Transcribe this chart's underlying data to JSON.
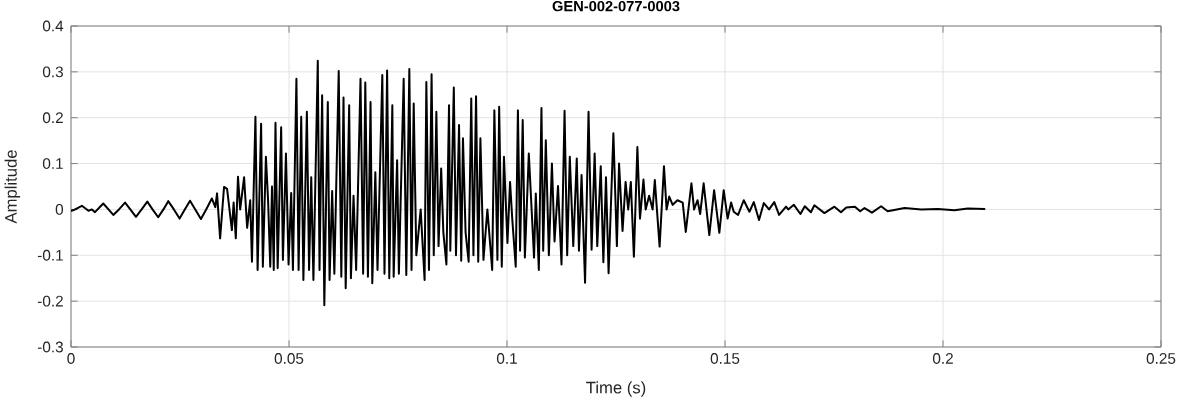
{
  "chart_data": {
    "type": "line",
    "title": "GEN-002-077-0003",
    "xlabel": "Time (s)",
    "ylabel": "Amplitude",
    "x": [
      0,
      0.0005,
      0.0025,
      0.004,
      0.0048,
      0.0055,
      0.0074,
      0.0086,
      0.0097,
      0.011,
      0.0124,
      0.0136,
      0.0149,
      0.0162,
      0.0175,
      0.0187,
      0.02,
      0.0212,
      0.0223,
      0.0236,
      0.0249,
      0.0261,
      0.0273,
      0.0285,
      0.0298,
      0.031,
      0.0323,
      0.0331,
      0.0335,
      0.0342,
      0.0351,
      0.0358,
      0.0369,
      0.0373,
      0.0378,
      0.0383,
      0.0388,
      0.0397,
      0.0404,
      0.0411,
      0.0415,
      0.0423,
      0.0428,
      0.0436,
      0.044,
      0.0447,
      0.0452,
      0.0457,
      0.0461,
      0.0465,
      0.0469,
      0.0474,
      0.0482,
      0.0486,
      0.0493,
      0.0499,
      0.0505,
      0.0509,
      0.0517,
      0.0522,
      0.0528,
      0.0533,
      0.0541,
      0.0546,
      0.0551,
      0.0556,
      0.0566,
      0.057,
      0.0576,
      0.0581,
      0.0589,
      0.0593,
      0.0599,
      0.0604,
      0.0614,
      0.062,
      0.0625,
      0.063,
      0.0638,
      0.0642,
      0.0648,
      0.0654,
      0.0664,
      0.067,
      0.0675,
      0.0681,
      0.0687,
      0.0691,
      0.0698,
      0.0703,
      0.0714,
      0.0719,
      0.0725,
      0.073,
      0.0737,
      0.074,
      0.0748,
      0.0752,
      0.0763,
      0.0769,
      0.0776,
      0.0781,
      0.0786,
      0.0792,
      0.0802,
      0.0811,
      0.0815,
      0.0821,
      0.0827,
      0.0832,
      0.0838,
      0.0843,
      0.0849,
      0.0854,
      0.0861,
      0.0867,
      0.087,
      0.0878,
      0.0883,
      0.089,
      0.0895,
      0.0899,
      0.0905,
      0.0912,
      0.0918,
      0.0923,
      0.0929,
      0.0934,
      0.0939,
      0.0946,
      0.0955,
      0.0966,
      0.0971,
      0.0978,
      0.0982,
      0.0988,
      0.0993,
      0.1001,
      0.1007,
      0.1012,
      0.102,
      0.1025,
      0.103,
      0.1036,
      0.1041,
      0.105,
      0.1062,
      0.1066,
      0.1073,
      0.1079,
      0.1083,
      0.1089,
      0.1096,
      0.1103,
      0.1109,
      0.1117,
      0.1125,
      0.1132,
      0.1138,
      0.1144,
      0.1152,
      0.116,
      0.1165,
      0.1171,
      0.1179,
      0.1187,
      0.1194,
      0.1201,
      0.1207,
      0.1215,
      0.1221,
      0.1227,
      0.1233,
      0.1244,
      0.1252,
      0.1257,
      0.1265,
      0.1272,
      0.1278,
      0.1284,
      0.1291,
      0.1299,
      0.1305,
      0.1313,
      0.1318,
      0.1326,
      0.1334,
      0.1339,
      0.135,
      0.136,
      0.1366,
      0.1372,
      0.138,
      0.1391,
      0.1403,
      0.141,
      0.1423,
      0.1429,
      0.1437,
      0.1443,
      0.1451,
      0.1464,
      0.1475,
      0.1487,
      0.1497,
      0.1506,
      0.1514,
      0.152,
      0.153,
      0.1543,
      0.1556,
      0.1566,
      0.1578,
      0.1589,
      0.1601,
      0.1613,
      0.1624,
      0.164,
      0.1645,
      0.1658,
      0.1673,
      0.1683,
      0.1697,
      0.1705,
      0.1728,
      0.1751,
      0.1766,
      0.1778,
      0.1798,
      0.181,
      0.182,
      0.1837,
      0.1858,
      0.1873,
      0.1912,
      0.195,
      0.1988,
      0.2026,
      0.2057,
      0.2095
    ],
    "series": [
      {
        "color": "#000000",
        "values": [
          -0.003,
          -0.002,
          0.008,
          -0.003,
          0.0,
          -0.006,
          0.013,
          0.0,
          -0.012,
          0.0,
          0.015,
          0.0,
          -0.016,
          0.0,
          0.017,
          0.0,
          -0.017,
          0.0,
          0.018,
          0.0,
          -0.02,
          0.0,
          0.019,
          0.0,
          -0.021,
          0.0,
          0.024,
          0.005,
          0.035,
          -0.063,
          0.049,
          0.045,
          -0.045,
          0.015,
          -0.063,
          0.071,
          0.0,
          0.07,
          -0.04,
          0.02,
          -0.114,
          0.202,
          -0.132,
          0.187,
          -0.125,
          0.115,
          0.02,
          -0.125,
          0.05,
          -0.132,
          0.189,
          -0.128,
          0.179,
          -0.11,
          0.122,
          -0.12,
          0.036,
          -0.132,
          0.285,
          -0.132,
          0.202,
          -0.154,
          0.213,
          -0.132,
          0.07,
          -0.154,
          0.324,
          -0.132,
          0.249,
          -0.209,
          0.234,
          -0.154,
          0.04,
          -0.14,
          0.302,
          -0.147,
          0.244,
          -0.172,
          0.227,
          -0.15,
          0.03,
          -0.132,
          0.285,
          -0.14,
          0.277,
          -0.147,
          0.234,
          -0.161,
          0.081,
          -0.132,
          0.293,
          -0.14,
          0.303,
          -0.15,
          0.227,
          -0.147,
          0.107,
          -0.14,
          0.285,
          -0.143,
          0.306,
          -0.132,
          0.231,
          -0.1,
          0.0,
          -0.154,
          0.278,
          -0.132,
          0.295,
          -0.1,
          0.213,
          -0.08,
          0.089,
          -0.05,
          -0.12,
          0.227,
          -0.09,
          0.266,
          -0.1,
          0.184,
          -0.112,
          0.155,
          -0.05,
          -0.114,
          0.242,
          -0.1,
          0.247,
          -0.114,
          0.155,
          -0.11,
          0.0,
          -0.132,
          0.216,
          -0.11,
          0.224,
          -0.125,
          0.115,
          -0.073,
          0.06,
          -0.02,
          -0.125,
          0.216,
          -0.09,
          0.195,
          -0.105,
          0.122,
          -0.105,
          0.035,
          -0.132,
          0.221,
          -0.09,
          0.151,
          -0.1,
          0.1,
          -0.07,
          0.051,
          -0.12,
          0.215,
          -0.1,
          0.115,
          -0.08,
          0.111,
          -0.09,
          0.075,
          -0.16,
          0.213,
          -0.088,
          0.122,
          -0.08,
          0.094,
          -0.115,
          0.07,
          -0.139,
          0.166,
          -0.08,
          0.1,
          -0.047,
          0.06,
          0.0,
          0.06,
          -0.103,
          0.136,
          -0.02,
          0.065,
          0.0,
          0.03,
          0.0,
          0.064,
          -0.081,
          0.094,
          0.0,
          0.028,
          0.01,
          0.02,
          0.015,
          -0.049,
          0.057,
          0.0,
          0.02,
          -0.01,
          0.057,
          -0.056,
          0.042,
          -0.051,
          0.042,
          -0.02,
          0.015,
          -0.005,
          -0.012,
          0.02,
          -0.005,
          0.016,
          -0.023,
          0.014,
          0.0,
          0.016,
          -0.012,
          0.006,
          0.0,
          0.01,
          -0.01,
          0.007,
          -0.006,
          0.009,
          -0.008,
          0.006,
          -0.006,
          0.004,
          0.006,
          -0.004,
          0.003,
          -0.007,
          0.007,
          -0.004,
          0.003,
          0.0,
          0.001,
          -0.002,
          0.002,
          0.001
        ]
      }
    ],
    "xlim": [
      0,
      0.25
    ],
    "ylim": [
      -0.3,
      0.4
    ],
    "xticks": [
      0,
      0.05,
      0.1,
      0.15,
      0.2,
      0.25
    ],
    "yticks": [
      -0.3,
      -0.2,
      -0.1,
      0,
      0.1,
      0.2,
      0.3,
      0.4
    ],
    "grid": true
  }
}
